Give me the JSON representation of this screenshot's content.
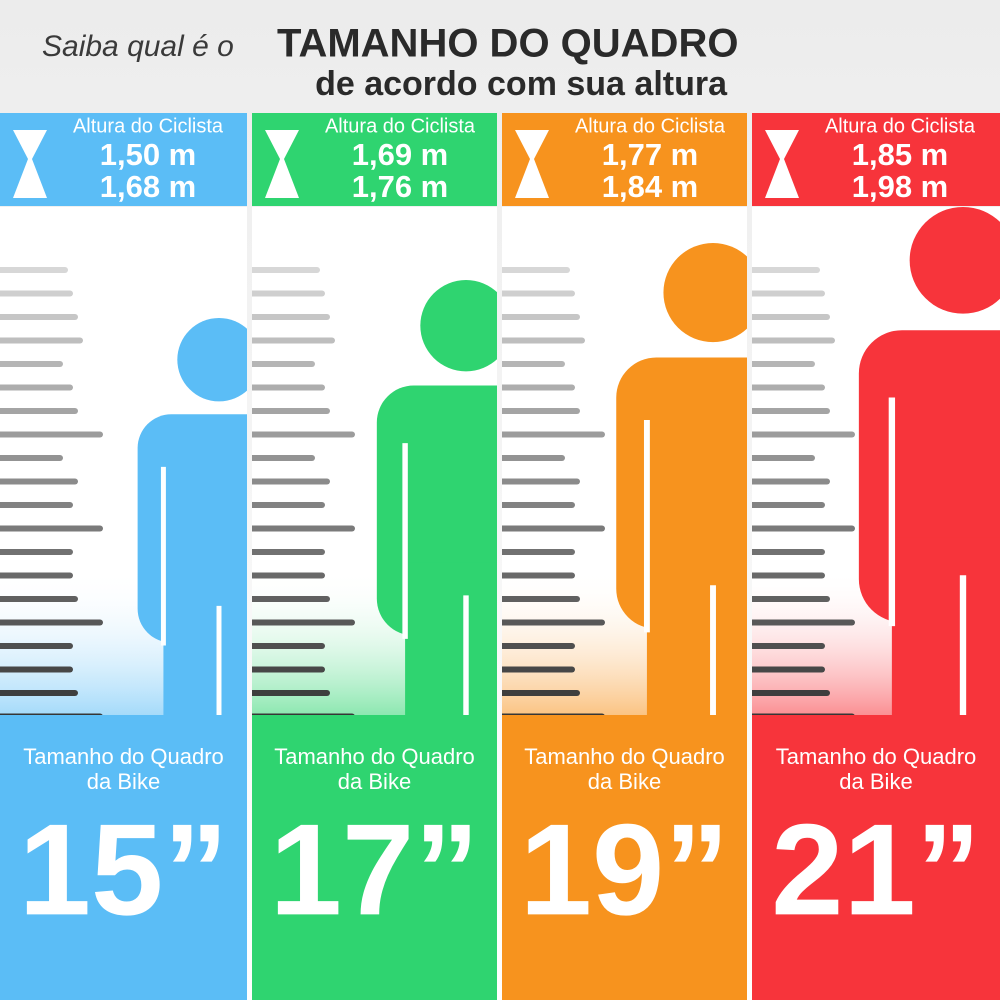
{
  "header": {
    "lead": "Saiba qual é o",
    "title": "TAMANHO DO QUADRO",
    "subtitle": "de acordo com sua altura"
  },
  "columns": [
    {
      "label": "Altura do Ciclista",
      "min": "1,50 m",
      "max": "1,68 m",
      "frame_label": [
        "Tamanho do Quadro",
        "da Bike"
      ],
      "size": "15”",
      "color": "#5bbdf6"
    },
    {
      "label": "Altura do Ciclista",
      "min": "1,69 m",
      "max": "1,76 m",
      "frame_label": [
        "Tamanho do Quadro",
        "da Bike"
      ],
      "size": "17”",
      "color": "#2fd470"
    },
    {
      "label": "Altura do Ciclista",
      "min": "1,77 m",
      "max": "1,84 m",
      "frame_label": [
        "Tamanho do Quadro",
        "da Bike"
      ],
      "size": "19”",
      "color": "#f7931e"
    },
    {
      "label": "Altura do Ciclista",
      "min": "1,85 m",
      "max": "1,98 m",
      "frame_label": [
        "Tamanho do Quadro",
        "da Bike"
      ],
      "size": "21”",
      "color": "#f7343b"
    }
  ]
}
